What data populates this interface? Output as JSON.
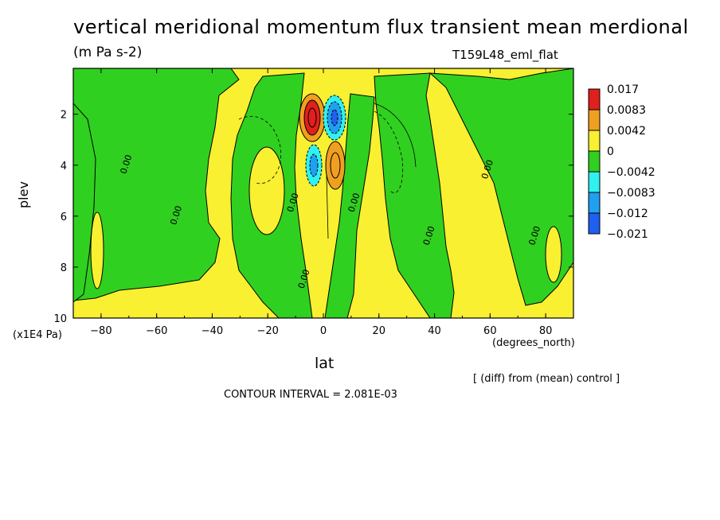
{
  "chart_data": {
    "type": "heatmap",
    "title": "vertical meridional momentum flux transient mean merdional",
    "units": "(m Pa s-2)",
    "run_id": "T159L48_eml_flat",
    "xlabel": "lat",
    "xunits": "(degrees_north)",
    "ylabel": "plev",
    "yunits": "(x1E4 Pa)",
    "diff_note": "[ (diff) from (mean) control ]",
    "contour_interval": "CONTOUR INTERVAL = 2.081E-03",
    "xlim": [
      -90,
      90
    ],
    "ylim": [
      10,
      0.2
    ],
    "x_ticks": [
      -80,
      -60,
      -40,
      -20,
      0,
      20,
      40,
      60,
      80
    ],
    "x_tick_labels": [
      "−80",
      "−60",
      "−40",
      "−20",
      "0",
      "20",
      "40",
      "60",
      "80"
    ],
    "y_ticks": [
      2,
      4,
      6,
      8,
      10
    ],
    "y_tick_labels": [
      "2",
      "4",
      "6",
      "8",
      "10"
    ],
    "legend": {
      "placement": "right",
      "labels": [
        "0.017",
        "0.0083",
        "0.0042",
        "0",
        "−0.0042",
        "−0.0083",
        "−0.012",
        "−0.021"
      ],
      "colors": [
        "#e0201c",
        "#f0a020",
        "#f8f030",
        "#30d020",
        "#30f0f0",
        "#20a0f0",
        "#2060f0"
      ]
    },
    "contour_labels": [
      {
        "text": "0.00",
        "lat": -70,
        "plev": 4.0
      },
      {
        "text": "0.00",
        "lat": -52,
        "plev": 6.0
      },
      {
        "text": "0.00",
        "lat": -10,
        "plev": 5.5
      },
      {
        "text": "0.00",
        "lat": -6,
        "plev": 8.5
      },
      {
        "text": "0.00",
        "lat": 12,
        "plev": 5.5
      },
      {
        "text": "0.00",
        "lat": 39,
        "plev": 6.8
      },
      {
        "text": "0.00",
        "lat": 60,
        "plev": 4.2
      },
      {
        "text": "0.00",
        "lat": 77,
        "plev": 6.8
      }
    ],
    "features": [
      {
        "lat": -5,
        "plev": 2.2,
        "value": 0.017
      },
      {
        "lat": 4,
        "plev": 2.2,
        "value": -0.021
      },
      {
        "lat": -5,
        "plev": 4.0,
        "value": -0.0083
      },
      {
        "lat": 4,
        "plev": 4.0,
        "value": 0.0083
      }
    ]
  }
}
